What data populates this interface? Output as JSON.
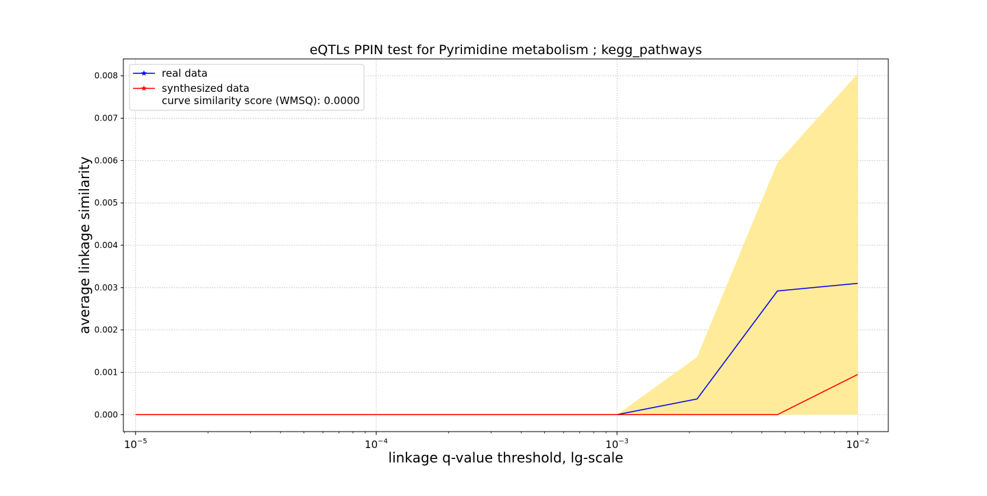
{
  "chart_data": {
    "type": "line",
    "title": "eQTLs PPIN test for Pyrimidine metabolism ; kegg_pathways",
    "xlabel": "linkage q-value threshold, lg-scale",
    "ylabel": "average linkage similarity",
    "x_scale": "log",
    "xlim": [
      8.9e-06,
      0.0134
    ],
    "ylim": [
      -0.0004,
      0.0084
    ],
    "grid": true,
    "legend_position": "top-left",
    "x_ticks": [
      {
        "value": 1e-05,
        "base": "10",
        "exp": "−5"
      },
      {
        "value": 0.0001,
        "base": "10",
        "exp": "−4"
      },
      {
        "value": 0.001,
        "base": "10",
        "exp": "−3"
      },
      {
        "value": 0.01,
        "base": "10",
        "exp": "−2"
      }
    ],
    "y_ticks": [
      {
        "value": 0.0,
        "label": "0.000"
      },
      {
        "value": 0.001,
        "label": "0.001"
      },
      {
        "value": 0.002,
        "label": "0.002"
      },
      {
        "value": 0.003,
        "label": "0.003"
      },
      {
        "value": 0.004,
        "label": "0.004"
      },
      {
        "value": 0.005,
        "label": "0.005"
      },
      {
        "value": 0.006,
        "label": "0.006"
      },
      {
        "value": 0.007,
        "label": "0.007"
      },
      {
        "value": 0.008,
        "label": "0.008"
      }
    ],
    "x": [
      1e-05,
      0.001,
      0.00215,
      0.00464,
      0.01
    ],
    "series": [
      {
        "name": "real data",
        "color": "#0000ff",
        "values": [
          0.0,
          0.0,
          0.00037,
          0.00292,
          0.0031
        ]
      },
      {
        "name": "synthesized data",
        "color": "#ff0000",
        "values": [
          0.0,
          0.0,
          0.0,
          0.0,
          0.00095
        ]
      }
    ],
    "band": {
      "color": "#ffeb99",
      "lower": [
        0.0,
        0.0,
        0.0,
        0.0,
        0.0
      ],
      "upper": [
        0.0,
        0.0,
        0.00136,
        0.00595,
        0.00805
      ]
    },
    "legend_note": "curve similarity score (WMSQ): 0.0000"
  }
}
